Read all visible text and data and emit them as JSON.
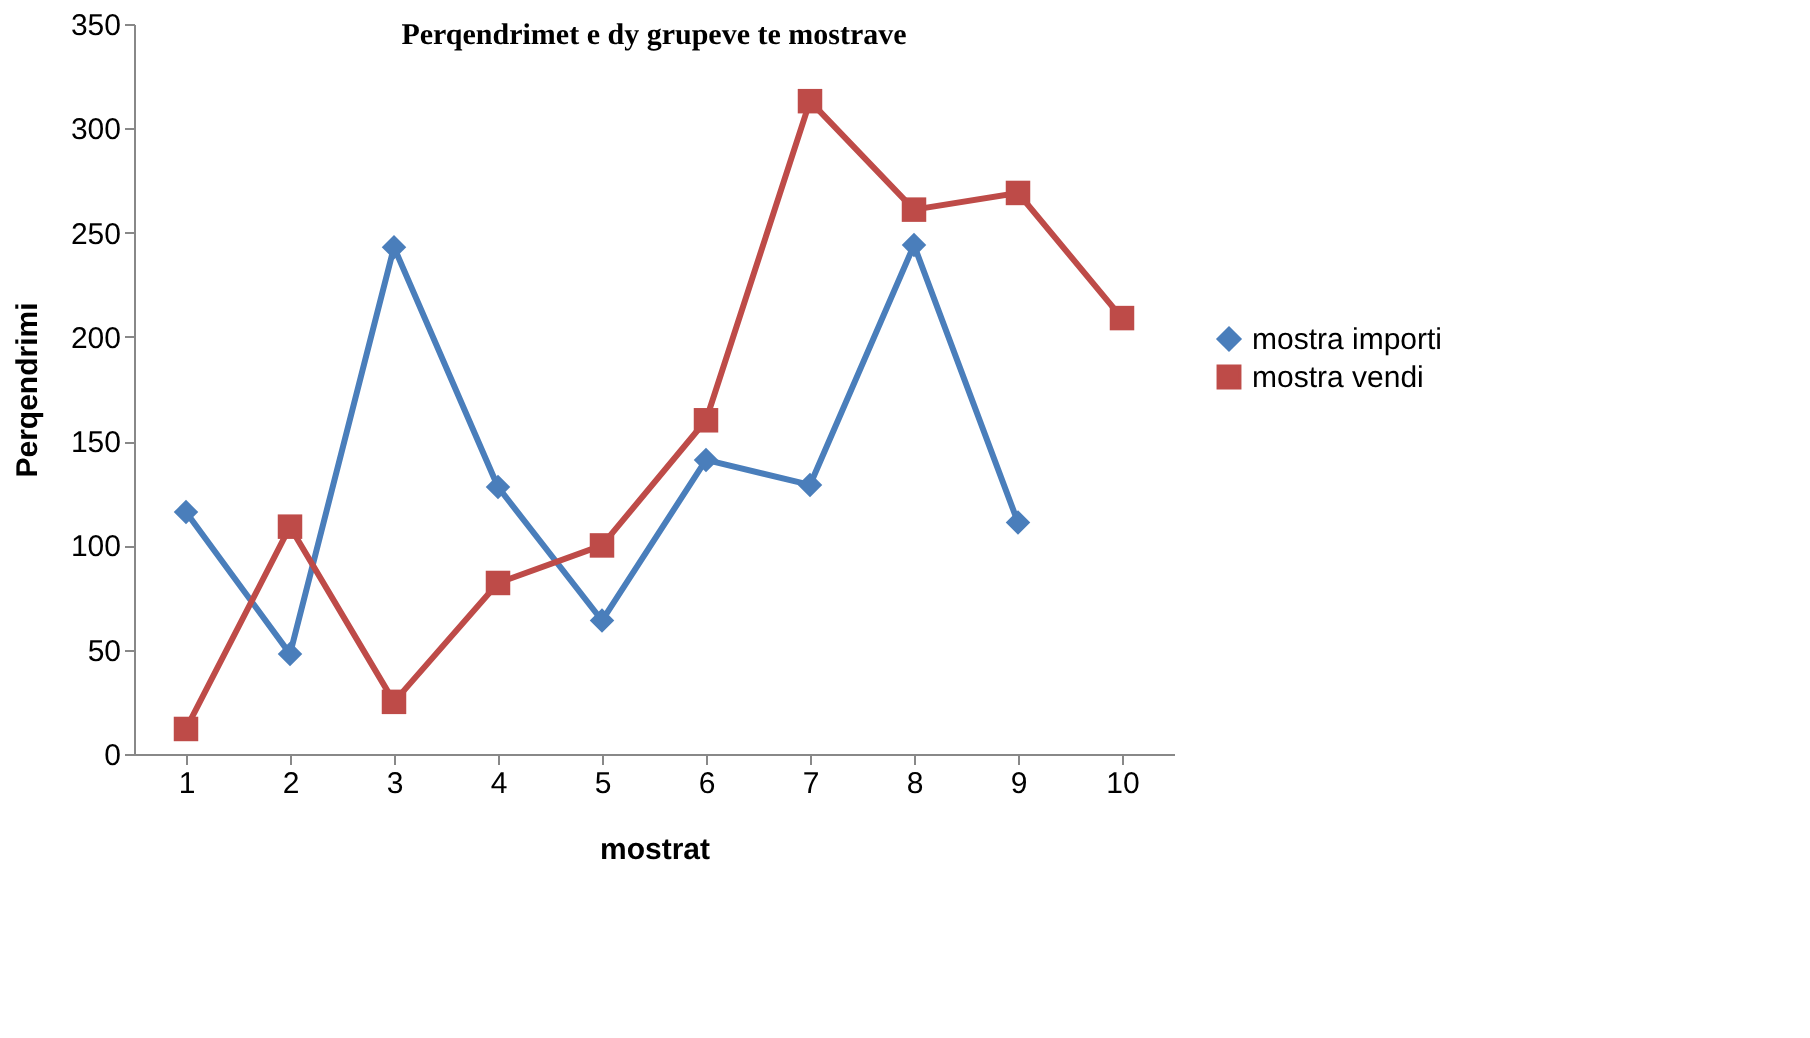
{
  "chart_data": {
    "type": "line",
    "title": "Perqendrimet e dy grupeve te mostrave",
    "xlabel": "mostrat",
    "ylabel": "Perqendrimi",
    "categories": [
      "1",
      "2",
      "3",
      "4",
      "5",
      "6",
      "7",
      "8",
      "9",
      "10"
    ],
    "series": [
      {
        "name": "mostra importi",
        "color": "#4a7ebb",
        "marker": "diamond",
        "values": [
          116,
          48,
          243,
          128,
          64,
          141,
          129,
          244,
          111,
          null
        ]
      },
      {
        "name": "mostra vendi",
        "color": "#be4b48",
        "marker": "square",
        "values": [
          12,
          109,
          25,
          82,
          100,
          160,
          313,
          261,
          269,
          209
        ]
      }
    ],
    "ylim": [
      0,
      350
    ],
    "yticks": [
      0,
      50,
      100,
      150,
      200,
      250,
      300,
      350
    ],
    "grid": false,
    "legend": "right",
    "line_style": "solid"
  }
}
